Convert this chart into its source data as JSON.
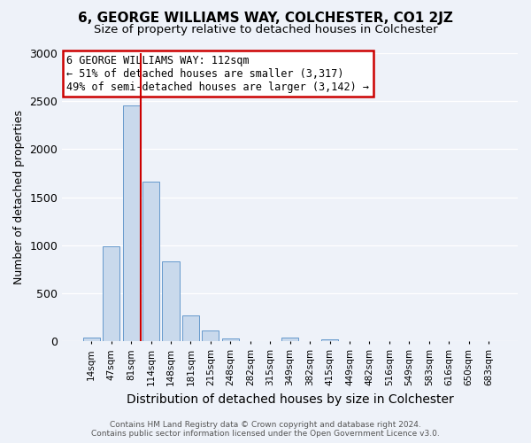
{
  "title": "6, GEORGE WILLIAMS WAY, COLCHESTER, CO1 2JZ",
  "subtitle": "Size of property relative to detached houses in Colchester",
  "xlabel": "Distribution of detached houses by size in Colchester",
  "ylabel": "Number of detached properties",
  "bar_color": "#c9d9ec",
  "bar_edge_color": "#6699cc",
  "background_color": "#eef2f9",
  "grid_color": "#ffffff",
  "categories": [
    "14sqm",
    "47sqm",
    "81sqm",
    "114sqm",
    "148sqm",
    "181sqm",
    "215sqm",
    "248sqm",
    "282sqm",
    "315sqm",
    "349sqm",
    "382sqm",
    "415sqm",
    "449sqm",
    "482sqm",
    "516sqm",
    "549sqm",
    "583sqm",
    "616sqm",
    "650sqm",
    "683sqm"
  ],
  "values": [
    40,
    990,
    2460,
    1660,
    830,
    275,
    115,
    30,
    0,
    0,
    40,
    0,
    20,
    0,
    0,
    0,
    0,
    0,
    0,
    0,
    0
  ],
  "vline_color": "#cc0000",
  "vline_x": 2.5,
  "annotation_title": "6 GEORGE WILLIAMS WAY: 112sqm",
  "annotation_line1": "← 51% of detached houses are smaller (3,317)",
  "annotation_line2": "49% of semi-detached houses are larger (3,142) →",
  "annotation_box_color": "#ffffff",
  "annotation_box_edge": "#cc0000",
  "ylim": [
    0,
    3000
  ],
  "yticks": [
    0,
    500,
    1000,
    1500,
    2000,
    2500,
    3000
  ],
  "footer1": "Contains HM Land Registry data © Crown copyright and database right 2024.",
  "footer2": "Contains public sector information licensed under the Open Government Licence v3.0."
}
